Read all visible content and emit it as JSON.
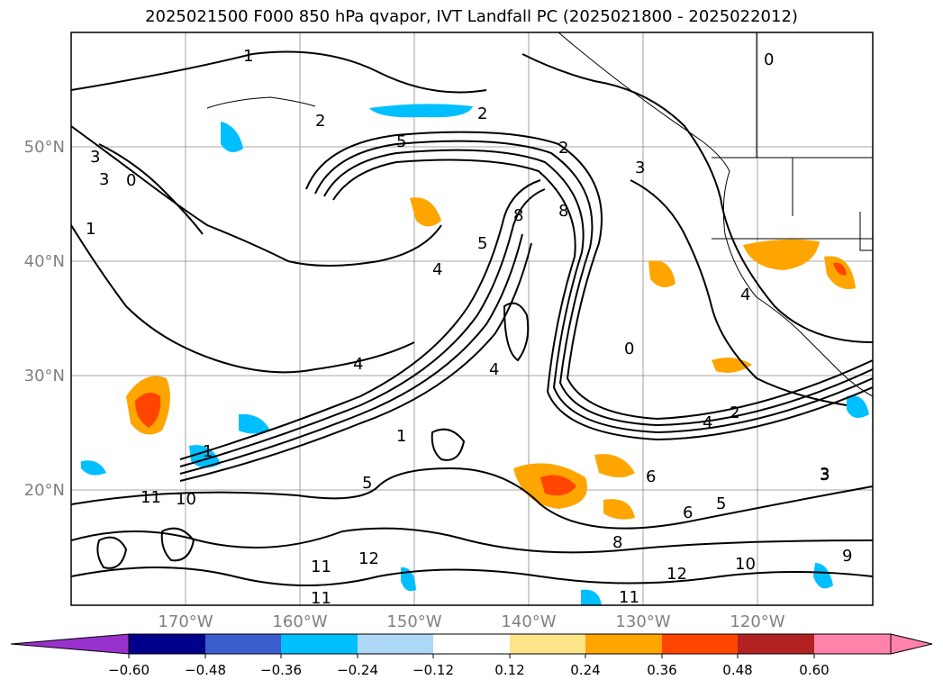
{
  "title": "2025021500 F000 850 hPa qvapor, IVT Landfall PC (2025021800 - 2025022012)",
  "map": {
    "lat_labels": [
      "50°N",
      "40°N",
      "30°N",
      "20°N"
    ],
    "lon_labels": [
      "170°W",
      "160°W",
      "150°W",
      "140°W",
      "130°W",
      "120°W"
    ],
    "contour_labels": [
      "1",
      "2",
      "5",
      "2",
      "3",
      "0",
      "1",
      "3",
      "0",
      "4",
      "4",
      "5",
      "8",
      "8",
      "4",
      "4",
      "3",
      "2",
      "0",
      "3",
      "1",
      "2",
      "11",
      "10",
      "5",
      "12",
      "11",
      "11",
      "11",
      "12",
      "10",
      "6",
      "5",
      "3",
      "4",
      "9",
      "8",
      "6",
      "1"
    ]
  },
  "colorbar": {
    "ticks": [
      "−0.60",
      "−0.48",
      "−0.36",
      "−0.24",
      "−0.12",
      "0.12",
      "0.24",
      "0.36",
      "0.48",
      "0.60"
    ],
    "colors": [
      "#9932cc",
      "#9932cc",
      "#00008b",
      "#3a5fcd",
      "#00bfff",
      "#add8f6",
      "#ffffff",
      "#fde68a",
      "#ffa500",
      "#ff4500",
      "#b22222",
      "#ff82ab",
      "#ff82ab"
    ]
  }
}
